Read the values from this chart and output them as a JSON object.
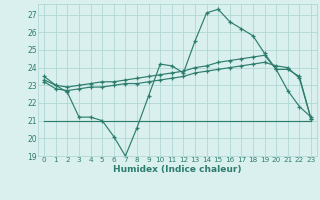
{
  "x": [
    0,
    1,
    2,
    3,
    4,
    5,
    6,
    7,
    8,
    9,
    10,
    11,
    12,
    13,
    14,
    15,
    16,
    17,
    18,
    19,
    20,
    21,
    22,
    23
  ],
  "line1": [
    23.5,
    23.0,
    22.6,
    21.2,
    21.2,
    21.0,
    20.1,
    19.0,
    20.6,
    22.4,
    24.2,
    24.1,
    23.7,
    25.5,
    27.1,
    27.3,
    26.6,
    26.2,
    25.8,
    24.8,
    23.9,
    22.7,
    21.8,
    21.2
  ],
  "line2": [
    23.3,
    23.0,
    22.9,
    23.0,
    23.1,
    23.2,
    23.2,
    23.3,
    23.4,
    23.5,
    23.6,
    23.7,
    23.8,
    24.0,
    24.1,
    24.3,
    24.4,
    24.5,
    24.6,
    24.7,
    23.9,
    23.9,
    23.5,
    21.1
  ],
  "line3": [
    23.2,
    22.8,
    22.7,
    22.8,
    22.9,
    22.9,
    23.0,
    23.1,
    23.1,
    23.2,
    23.3,
    23.4,
    23.5,
    23.7,
    23.8,
    23.9,
    24.0,
    24.1,
    24.2,
    24.3,
    24.1,
    24.0,
    23.4,
    21.1
  ],
  "line4_flat": [
    21.0,
    21.0,
    21.0,
    21.0,
    21.0,
    21.0,
    21.0,
    21.0,
    21.0,
    21.0,
    21.0,
    21.0,
    21.0,
    21.0,
    21.0,
    21.0,
    21.0,
    21.0,
    21.0,
    21.0,
    21.0,
    21.0,
    21.0,
    21.0
  ],
  "line_color": "#2d7d6e",
  "bg_color": "#daf0ee",
  "grid_color": "#b0d8d4",
  "xlabel": "Humidex (Indice chaleur)",
  "ylim": [
    19,
    27.6
  ],
  "xlim": [
    -0.5,
    23.5
  ],
  "yticks": [
    19,
    20,
    21,
    22,
    23,
    24,
    25,
    26,
    27
  ],
  "xticks": [
    0,
    1,
    2,
    3,
    4,
    5,
    6,
    7,
    8,
    9,
    10,
    11,
    12,
    13,
    14,
    15,
    16,
    17,
    18,
    19,
    20,
    21,
    22,
    23
  ]
}
